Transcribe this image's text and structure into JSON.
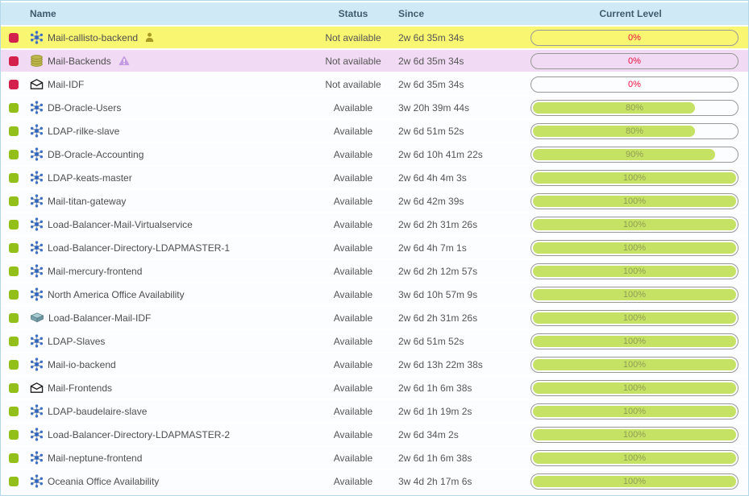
{
  "table": {
    "columns": {
      "name": "Name",
      "status": "Status",
      "since": "Since",
      "level": "Current Level"
    },
    "rows": [
      {
        "name": "Mail-callisto-backend",
        "icon": "service-icon",
        "badge": "person-icon",
        "state": "critical",
        "row_style": "critical-yellow",
        "status": "Not available",
        "since": "2w 6d 35m 34s",
        "level": 0,
        "level_label": "0%"
      },
      {
        "name": "Mail-Backends",
        "icon": "database-icon",
        "badge": "warning-icon",
        "state": "critical",
        "row_style": "critical-pink",
        "status": "Not available",
        "since": "2w 6d 35m 34s",
        "level": 0,
        "level_label": "0%"
      },
      {
        "name": "Mail-IDF",
        "icon": "envelope-icon",
        "badge": null,
        "state": "critical",
        "row_style": "default",
        "status": "Not available",
        "since": "2w 6d 35m 34s",
        "level": 0,
        "level_label": "0%"
      },
      {
        "name": "DB-Oracle-Users",
        "icon": "service-icon",
        "badge": null,
        "state": "ok",
        "row_style": "default",
        "status": "Available",
        "since": "3w 20h 39m 44s",
        "level": 80,
        "level_label": "80%"
      },
      {
        "name": "LDAP-rilke-slave",
        "icon": "service-icon",
        "badge": null,
        "state": "ok",
        "row_style": "default",
        "status": "Available",
        "since": "2w 6d 51m 52s",
        "level": 80,
        "level_label": "80%"
      },
      {
        "name": "DB-Oracle-Accounting",
        "icon": "service-icon",
        "badge": null,
        "state": "ok",
        "row_style": "default",
        "status": "Available",
        "since": "2w 6d 10h 41m 22s",
        "level": 90,
        "level_label": "90%"
      },
      {
        "name": "LDAP-keats-master",
        "icon": "service-icon",
        "badge": null,
        "state": "ok",
        "row_style": "default",
        "status": "Available",
        "since": "2w 6d 4h 4m 3s",
        "level": 100,
        "level_label": "100%"
      },
      {
        "name": "Mail-titan-gateway",
        "icon": "service-icon",
        "badge": null,
        "state": "ok",
        "row_style": "default",
        "status": "Available",
        "since": "2w 6d 42m 39s",
        "level": 100,
        "level_label": "100%"
      },
      {
        "name": "Load-Balancer-Mail-Virtualservice",
        "icon": "service-icon",
        "badge": null,
        "state": "ok",
        "row_style": "default",
        "status": "Available",
        "since": "2w 6d 2h 31m 26s",
        "level": 100,
        "level_label": "100%"
      },
      {
        "name": "Load-Balancer-Directory-LDAPMASTER-1",
        "icon": "service-icon",
        "badge": null,
        "state": "ok",
        "row_style": "default",
        "status": "Available",
        "since": "2w 6d 4h 7m 1s",
        "level": 100,
        "level_label": "100%"
      },
      {
        "name": "Mail-mercury-frontend",
        "icon": "service-icon",
        "badge": null,
        "state": "ok",
        "row_style": "default",
        "status": "Available",
        "since": "2w 6d 2h 12m 57s",
        "level": 100,
        "level_label": "100%"
      },
      {
        "name": "North America Office Availability",
        "icon": "service-icon",
        "badge": null,
        "state": "ok",
        "row_style": "default",
        "status": "Available",
        "since": "3w 6d 10h 57m 9s",
        "level": 100,
        "level_label": "100%"
      },
      {
        "name": "Load-Balancer-Mail-IDF",
        "icon": "switch-icon",
        "badge": null,
        "state": "ok",
        "row_style": "default",
        "status": "Available",
        "since": "2w 6d 2h 31m 26s",
        "level": 100,
        "level_label": "100%"
      },
      {
        "name": "LDAP-Slaves",
        "icon": "service-icon",
        "badge": null,
        "state": "ok",
        "row_style": "default",
        "status": "Available",
        "since": "2w 6d 51m 52s",
        "level": 100,
        "level_label": "100%"
      },
      {
        "name": "Mail-io-backend",
        "icon": "service-icon",
        "badge": null,
        "state": "ok",
        "row_style": "default",
        "status": "Available",
        "since": "2w 6d 13h 22m 38s",
        "level": 100,
        "level_label": "100%"
      },
      {
        "name": "Mail-Frontends",
        "icon": "envelope-icon",
        "badge": null,
        "state": "ok",
        "row_style": "default",
        "status": "Available",
        "since": "2w 6d 1h 6m 38s",
        "level": 100,
        "level_label": "100%"
      },
      {
        "name": "LDAP-baudelaire-slave",
        "icon": "service-icon",
        "badge": null,
        "state": "ok",
        "row_style": "default",
        "status": "Available",
        "since": "2w 6d 1h 19m 2s",
        "level": 100,
        "level_label": "100%"
      },
      {
        "name": "Load-Balancer-Directory-LDAPMASTER-2",
        "icon": "service-icon",
        "badge": null,
        "state": "ok",
        "row_style": "default",
        "status": "Available",
        "since": "2w 6d 34m 2s",
        "level": 100,
        "level_label": "100%"
      },
      {
        "name": "Mail-neptune-frontend",
        "icon": "service-icon",
        "badge": null,
        "state": "ok",
        "row_style": "default",
        "status": "Available",
        "since": "2w 6d 1h 6m 38s",
        "level": 100,
        "level_label": "100%"
      },
      {
        "name": "Oceania Office Availability",
        "icon": "service-icon",
        "badge": null,
        "state": "ok",
        "row_style": "default",
        "status": "Available",
        "since": "3w 4d 2h 17m 6s",
        "level": 100,
        "level_label": "100%"
      }
    ]
  },
  "colors": {
    "header_bg": "#cfe9f7",
    "header_text": "#3f5c6d",
    "row_yellow": "#f9f672",
    "row_pink": "#f1daf3",
    "row_default": "#fcfdff",
    "indicator_red": "#d4204c",
    "indicator_green": "#92bf1a",
    "bar_fill": "#c6e264",
    "bar_border": "#999999",
    "level_zero_text": "#e70d3f",
    "level_ok_text": "#8f9e54",
    "body_text": "#4e4e4e",
    "muted_text": "#555555",
    "frame_border": "#b3d8ea"
  }
}
